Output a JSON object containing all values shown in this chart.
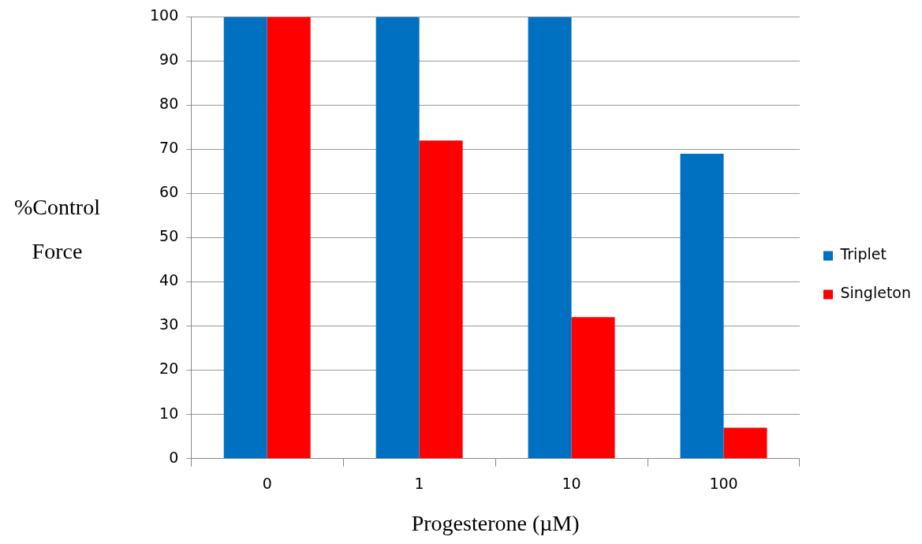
{
  "chart_data": {
    "type": "bar",
    "xlabel": "Progesterone (µM)",
    "ylabel": "%Control Force",
    "categories": [
      "0",
      "1",
      "10",
      "100"
    ],
    "series": [
      {
        "name": "Triplet",
        "color": "#0070c0",
        "values": [
          100,
          100,
          100,
          69
        ]
      },
      {
        "name": "Singleton",
        "color": "#ff0000",
        "values": [
          100,
          72,
          32,
          7
        ]
      }
    ],
    "ylim": [
      0,
      100
    ],
    "yticks": [
      0,
      10,
      20,
      30,
      40,
      50,
      60,
      70,
      80,
      90,
      100
    ],
    "grid": "y",
    "legend": "right"
  }
}
